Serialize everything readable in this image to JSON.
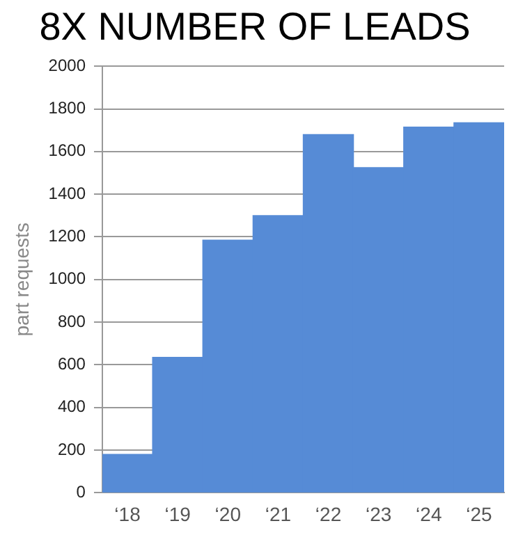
{
  "chart_data": {
    "type": "bar",
    "title": "8X NUMBER OF LEADS",
    "ylabel": "part requests",
    "categories": [
      "‘18",
      "‘19",
      "‘20",
      "‘21",
      "‘22",
      "‘23",
      "‘24",
      "‘25"
    ],
    "values": [
      180,
      635,
      1185,
      1300,
      1680,
      1525,
      1715,
      1735
    ],
    "color": "#568bd6",
    "ylim": [
      0,
      2000
    ],
    "yticks": [
      0,
      200,
      400,
      600,
      800,
      1000,
      1200,
      1400,
      1600,
      1800,
      2000
    ],
    "grid": "y",
    "legend": false
  }
}
